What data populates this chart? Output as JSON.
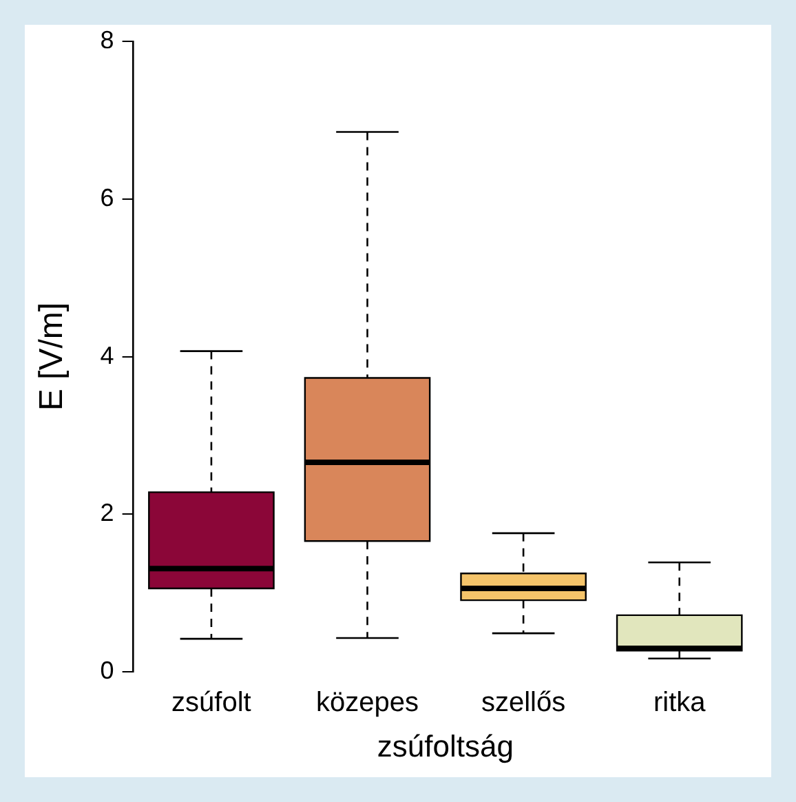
{
  "chart_data": {
    "type": "box",
    "xlabel": "zsúfoltság",
    "ylabel": "E [V/m]",
    "categories": [
      "zsúfolt",
      "közepes",
      "szellős",
      "ritka"
    ],
    "boxes": [
      {
        "low": 0.42,
        "q1": 1.06,
        "median": 1.31,
        "q3": 2.28,
        "high": 4.07
      },
      {
        "low": 0.43,
        "q1": 1.66,
        "median": 2.66,
        "q3": 3.73,
        "high": 6.85
      },
      {
        "low": 0.49,
        "q1": 0.91,
        "median": 1.06,
        "q3": 1.25,
        "high": 1.76
      },
      {
        "low": 0.17,
        "q1": 0.27,
        "median": 0.3,
        "q3": 0.72,
        "high": 1.39
      }
    ],
    "colors": [
      "#8b0638",
      "#d9865a",
      "#f5c46a",
      "#e1e6bd"
    ],
    "ylim": [
      0,
      8
    ],
    "yticks": [
      0,
      2,
      4,
      6,
      8
    ],
    "grid": false,
    "legend": false
  }
}
